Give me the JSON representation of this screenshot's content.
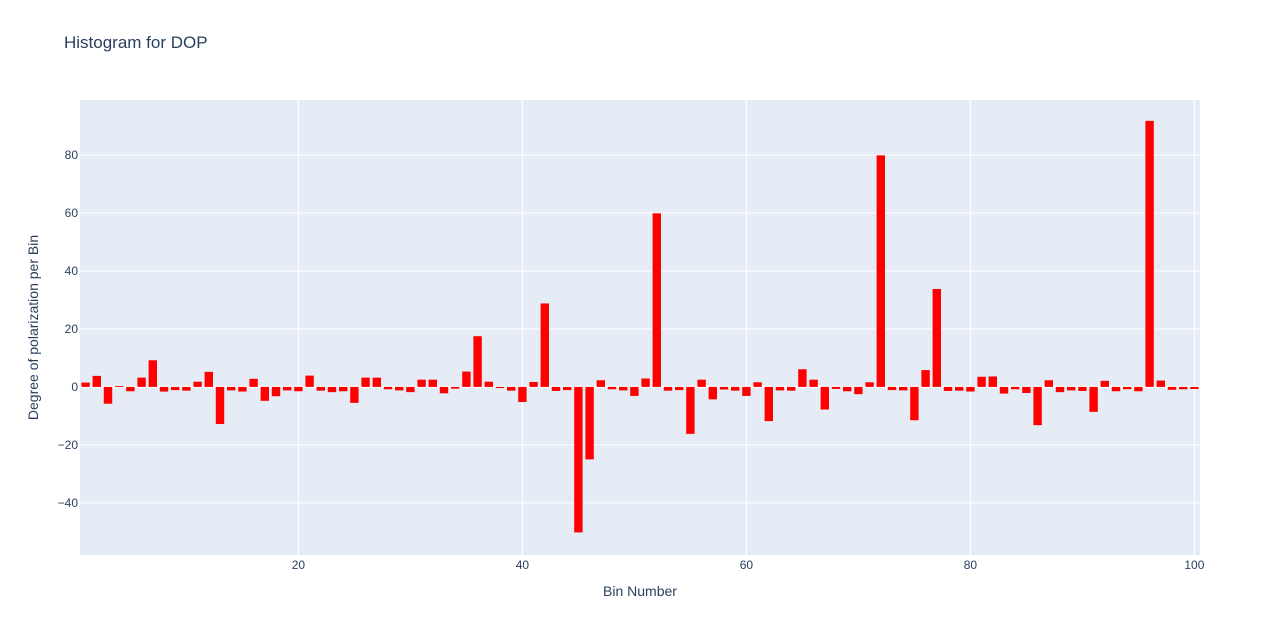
{
  "chart_data": {
    "type": "bar",
    "title": "Histogram for DOP",
    "xlabel": "Bin Number",
    "ylabel": "Degree of polarization per Bin",
    "xlim": [
      0.5,
      100.5
    ],
    "ylim": [
      -58,
      99
    ],
    "xticks": [
      20,
      40,
      60,
      80,
      100
    ],
    "yticks": [
      -40,
      -20,
      0,
      20,
      40,
      60,
      80
    ],
    "grid": true,
    "colors": {
      "bar": "#ff0000",
      "plot_bg": "#e5ecf6",
      "grid": "#ffffff",
      "text": "#2a3f5f"
    },
    "x": [
      1,
      2,
      3,
      4,
      5,
      6,
      7,
      8,
      9,
      10,
      11,
      12,
      13,
      14,
      15,
      16,
      17,
      18,
      19,
      20,
      21,
      22,
      23,
      24,
      25,
      26,
      27,
      28,
      29,
      30,
      31,
      32,
      33,
      34,
      35,
      36,
      37,
      38,
      39,
      40,
      41,
      42,
      43,
      44,
      45,
      46,
      47,
      48,
      49,
      50,
      51,
      52,
      53,
      54,
      55,
      56,
      57,
      58,
      59,
      60,
      61,
      62,
      63,
      64,
      65,
      66,
      67,
      68,
      69,
      70,
      71,
      72,
      73,
      74,
      75,
      76,
      77,
      78,
      79,
      80,
      81,
      82,
      83,
      84,
      85,
      86,
      87,
      88,
      89,
      90,
      91,
      92,
      93,
      94,
      95,
      96,
      97,
      98,
      99,
      100
    ],
    "values": [
      1.5,
      3.8,
      -5.8,
      0.3,
      -1.5,
      3.2,
      9.2,
      -1.6,
      -1.1,
      -1.3,
      1.8,
      5.2,
      -12.8,
      -1.2,
      -1.6,
      2.8,
      -4.8,
      -3.2,
      -1.2,
      -1.5,
      3.9,
      -1.3,
      -1.8,
      -1.5,
      -5.5,
      3.2,
      3.2,
      -0.8,
      -1.2,
      -1.8,
      2.5,
      2.5,
      -2.2,
      -0.6,
      5.3,
      17.5,
      1.8,
      -0.4,
      -1.3,
      -5.2,
      1.7,
      28.8,
      -1.4,
      -1.1,
      -50.2,
      -25.0,
      2.3,
      -0.8,
      -1.2,
      -3.1,
      2.9,
      59.9,
      -1.3,
      -1.1,
      -16.2,
      2.5,
      -4.3,
      -0.9,
      -1.3,
      -3.1,
      1.6,
      -11.8,
      -1.2,
      -1.3,
      6.1,
      2.5,
      -7.8,
      -0.7,
      -1.5,
      -2.5,
      1.6,
      79.9,
      -1.1,
      -1.2,
      -11.5,
      5.8,
      33.8,
      -1.4,
      -1.3,
      -1.6,
      3.5,
      3.6,
      -2.3,
      -0.8,
      -2.1,
      -13.2,
      2.3,
      -1.8,
      -1.2,
      -1.4,
      -8.6,
      2.1,
      -1.5,
      -0.8,
      -1.5,
      91.8,
      2.2,
      -1.0,
      -0.8,
      -0.7
    ]
  }
}
